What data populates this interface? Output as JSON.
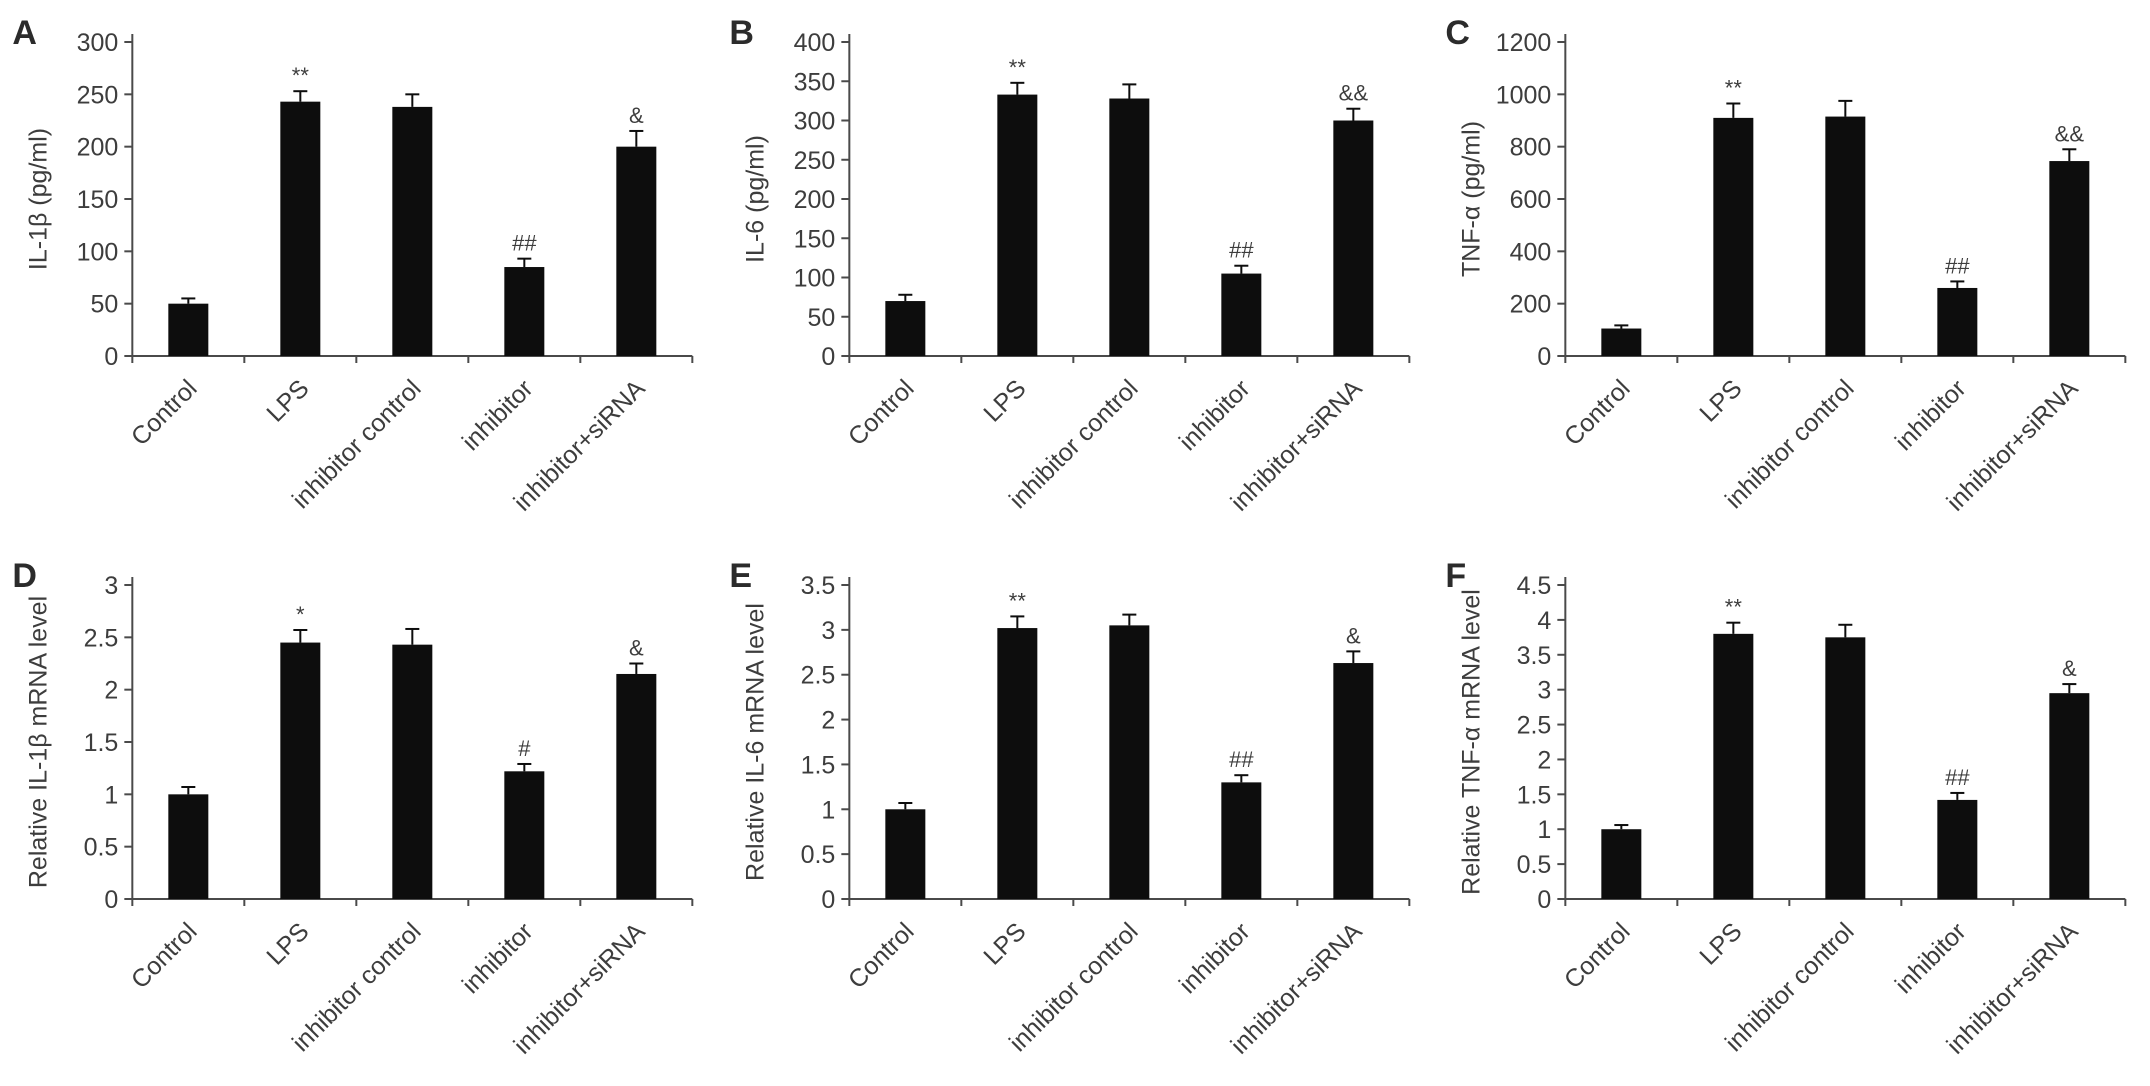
{
  "figure": {
    "background": "#ffffff",
    "bar_color": "#0d0d0d",
    "axis_color": "#4a4a4a",
    "text_color": "#3d3d3d",
    "panel_letter_color": "#2b2b2b"
  },
  "chart_data": [
    {
      "type": "bar",
      "panel": "A",
      "title": "",
      "ylabel": "IL-1β (pg/ml)",
      "xlabel": "",
      "categories": [
        "Control",
        "LPS",
        "inhibitor control",
        "inhibitor",
        "inhibitor+siRNA"
      ],
      "values": [
        50,
        243,
        238,
        85,
        200
      ],
      "errors": [
        5,
        10,
        12,
        8,
        15
      ],
      "annotations": [
        "",
        "**",
        "",
        "##",
        "&"
      ],
      "ylim": [
        0,
        300
      ],
      "ytick_step": 50,
      "grid": false,
      "legend": "none"
    },
    {
      "type": "bar",
      "panel": "B",
      "title": "",
      "ylabel": "IL-6 (pg/ml)",
      "xlabel": "",
      "categories": [
        "Control",
        "LPS",
        "inhibitor control",
        "inhibitor",
        "inhibitor+siRNA"
      ],
      "values": [
        70,
        333,
        328,
        105,
        300
      ],
      "errors": [
        8,
        15,
        18,
        10,
        15
      ],
      "annotations": [
        "",
        "**",
        "",
        "##",
        "&&"
      ],
      "ylim": [
        0,
        400
      ],
      "ytick_step": 50,
      "grid": false,
      "legend": "none"
    },
    {
      "type": "bar",
      "panel": "C",
      "title": "",
      "ylabel": "TNF-α (pg/ml)",
      "xlabel": "",
      "categories": [
        "Control",
        "LPS",
        "inhibitor control",
        "inhibitor",
        "inhibitor+siRNA"
      ],
      "values": [
        105,
        910,
        915,
        260,
        745
      ],
      "errors": [
        12,
        55,
        60,
        25,
        45
      ],
      "annotations": [
        "",
        "**",
        "",
        "##",
        "&&"
      ],
      "ylim": [
        0,
        1200
      ],
      "ytick_step": 200,
      "grid": false,
      "legend": "none"
    },
    {
      "type": "bar",
      "panel": "D",
      "title": "",
      "ylabel": "Relative IL-1β mRNA level",
      "xlabel": "",
      "categories": [
        "Control",
        "LPS",
        "inhibitor control",
        "inhibitor",
        "inhibitor+siRNA"
      ],
      "values": [
        1.0,
        2.45,
        2.43,
        1.22,
        2.15
      ],
      "errors": [
        0.07,
        0.12,
        0.15,
        0.07,
        0.1
      ],
      "annotations": [
        "",
        "*",
        "",
        "#",
        "&"
      ],
      "ylim": [
        0,
        3
      ],
      "ytick_step": 0.5,
      "grid": false,
      "legend": "none"
    },
    {
      "type": "bar",
      "panel": "E",
      "title": "",
      "ylabel": "Relative IL-6 mRNA level",
      "xlabel": "",
      "categories": [
        "Control",
        "LPS",
        "inhibitor control",
        "inhibitor",
        "inhibitor+siRNA"
      ],
      "values": [
        1.0,
        3.02,
        3.05,
        1.3,
        2.63
      ],
      "errors": [
        0.07,
        0.13,
        0.12,
        0.08,
        0.13
      ],
      "annotations": [
        "",
        "**",
        "",
        "##",
        "&"
      ],
      "ylim": [
        0,
        3.5
      ],
      "ytick_step": 0.5,
      "grid": false,
      "legend": "none"
    },
    {
      "type": "bar",
      "panel": "F",
      "title": "",
      "ylabel": "Relative TNF-α mRNA level",
      "xlabel": "",
      "categories": [
        "Control",
        "LPS",
        "inhibitor control",
        "inhibitor",
        "inhibitor+siRNA"
      ],
      "values": [
        1.0,
        3.8,
        3.75,
        1.42,
        2.95
      ],
      "errors": [
        0.06,
        0.16,
        0.18,
        0.1,
        0.13
      ],
      "annotations": [
        "",
        "**",
        "",
        "##",
        "&"
      ],
      "ylim": [
        0,
        4.5
      ],
      "ytick_step": 0.5,
      "grid": false,
      "legend": "none"
    }
  ]
}
